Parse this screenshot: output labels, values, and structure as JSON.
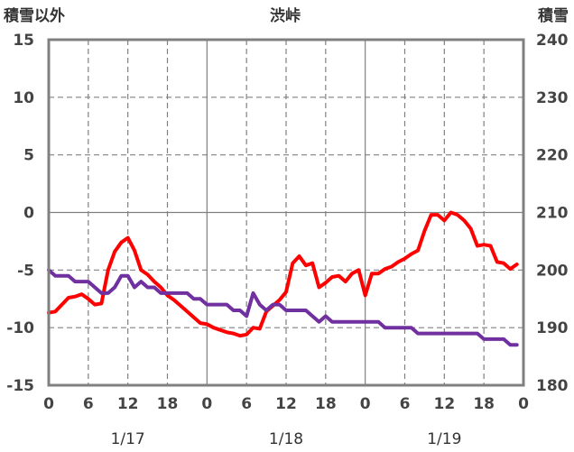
{
  "chart_data": {
    "type": "line",
    "title": "渋峠",
    "left_axis_label": "積雪以外",
    "right_axis_label": "積雪",
    "left_axis": {
      "ylim": [
        -15,
        15
      ],
      "ticks": [
        15,
        10,
        5,
        0,
        -5,
        -10,
        -15
      ]
    },
    "right_axis": {
      "ylim": [
        180,
        240
      ],
      "ticks": [
        240,
        230,
        220,
        210,
        200,
        190,
        180
      ]
    },
    "x_axis": {
      "range_hours": [
        0,
        72
      ],
      "tick_labels": [
        "0",
        "6",
        "12",
        "18",
        "0",
        "6",
        "12",
        "18",
        "0",
        "6",
        "12",
        "18",
        "0"
      ],
      "date_labels": [
        "1/17",
        "1/18",
        "1/19"
      ]
    },
    "grid": true,
    "series": [
      {
        "axis": "left",
        "color": "#ff0000",
        "points": [
          [
            0,
            -8.7
          ],
          [
            1,
            -8.6
          ],
          [
            2,
            -8.0
          ],
          [
            3,
            -7.4
          ],
          [
            4,
            -7.3
          ],
          [
            5,
            -7.1
          ],
          [
            6,
            -7.5
          ],
          [
            7,
            -8.0
          ],
          [
            8,
            -7.9
          ],
          [
            9,
            -5.0
          ],
          [
            10,
            -3.4
          ],
          [
            11,
            -2.6
          ],
          [
            12,
            -2.2
          ],
          [
            13,
            -3.3
          ],
          [
            14,
            -5.0
          ],
          [
            15,
            -5.4
          ],
          [
            16,
            -6.0
          ],
          [
            17,
            -6.5
          ],
          [
            18,
            -7.2
          ],
          [
            19,
            -7.6
          ],
          [
            20,
            -8.1
          ],
          [
            21,
            -8.6
          ],
          [
            22,
            -9.1
          ],
          [
            23,
            -9.6
          ],
          [
            24,
            -9.7
          ],
          [
            25,
            -10.0
          ],
          [
            26,
            -10.2
          ],
          [
            27,
            -10.4
          ],
          [
            28,
            -10.5
          ],
          [
            29,
            -10.7
          ],
          [
            30,
            -10.6
          ],
          [
            31,
            -10.0
          ],
          [
            32,
            -10.1
          ],
          [
            33,
            -8.6
          ],
          [
            34,
            -8.1
          ],
          [
            35,
            -7.6
          ],
          [
            36,
            -6.9
          ],
          [
            37,
            -4.4
          ],
          [
            38,
            -3.8
          ],
          [
            39,
            -4.6
          ],
          [
            40,
            -4.4
          ],
          [
            41,
            -6.5
          ],
          [
            42,
            -6.1
          ],
          [
            43,
            -5.6
          ],
          [
            44,
            -5.5
          ],
          [
            45,
            -6.0
          ],
          [
            46,
            -5.3
          ],
          [
            47,
            -5.0
          ],
          [
            48,
            -7.2
          ],
          [
            49,
            -5.3
          ],
          [
            50,
            -5.3
          ],
          [
            51,
            -4.9
          ],
          [
            52,
            -4.7
          ],
          [
            53,
            -4.3
          ],
          [
            54,
            -4.0
          ],
          [
            55,
            -3.6
          ],
          [
            56,
            -3.3
          ],
          [
            57,
            -1.6
          ],
          [
            58,
            -0.2
          ],
          [
            59,
            -0.2
          ],
          [
            60,
            -0.7
          ],
          [
            61,
            0.0
          ],
          [
            62,
            -0.2
          ],
          [
            63,
            -0.7
          ],
          [
            64,
            -1.4
          ],
          [
            65,
            -2.9
          ],
          [
            66,
            -2.8
          ],
          [
            67,
            -2.9
          ],
          [
            68,
            -4.3
          ],
          [
            69,
            -4.4
          ],
          [
            70,
            -4.9
          ],
          [
            71,
            -4.5
          ]
        ]
      },
      {
        "axis": "right",
        "color": "#7030a0",
        "points": [
          [
            0,
            200
          ],
          [
            1,
            199
          ],
          [
            2,
            199
          ],
          [
            3,
            199
          ],
          [
            4,
            198
          ],
          [
            5,
            198
          ],
          [
            6,
            198
          ],
          [
            7,
            197
          ],
          [
            8,
            196
          ],
          [
            9,
            196
          ],
          [
            10,
            197
          ],
          [
            11,
            199
          ],
          [
            12,
            199
          ],
          [
            13,
            197
          ],
          [
            14,
            198
          ],
          [
            15,
            197
          ],
          [
            16,
            197
          ],
          [
            17,
            196
          ],
          [
            18,
            196
          ],
          [
            19,
            196
          ],
          [
            20,
            196
          ],
          [
            21,
            196
          ],
          [
            22,
            195
          ],
          [
            23,
            195
          ],
          [
            24,
            194
          ],
          [
            25,
            194
          ],
          [
            26,
            194
          ],
          [
            27,
            194
          ],
          [
            28,
            193
          ],
          [
            29,
            193
          ],
          [
            30,
            192
          ],
          [
            31,
            196
          ],
          [
            32,
            194
          ],
          [
            33,
            193
          ],
          [
            34,
            194
          ],
          [
            35,
            194
          ],
          [
            36,
            193
          ],
          [
            37,
            193
          ],
          [
            38,
            193
          ],
          [
            39,
            193
          ],
          [
            40,
            192
          ],
          [
            41,
            191
          ],
          [
            42,
            192
          ],
          [
            43,
            191
          ],
          [
            44,
            191
          ],
          [
            45,
            191
          ],
          [
            46,
            191
          ],
          [
            47,
            191
          ],
          [
            48,
            191
          ],
          [
            49,
            191
          ],
          [
            50,
            191
          ],
          [
            51,
            190
          ],
          [
            52,
            190
          ],
          [
            53,
            190
          ],
          [
            54,
            190
          ],
          [
            55,
            190
          ],
          [
            56,
            189
          ],
          [
            57,
            189
          ],
          [
            58,
            189
          ],
          [
            59,
            189
          ],
          [
            60,
            189
          ],
          [
            61,
            189
          ],
          [
            62,
            189
          ],
          [
            63,
            189
          ],
          [
            64,
            189
          ],
          [
            65,
            189
          ],
          [
            66,
            188
          ],
          [
            67,
            188
          ],
          [
            68,
            188
          ],
          [
            69,
            188
          ],
          [
            70,
            187
          ],
          [
            71,
            187
          ]
        ]
      }
    ]
  }
}
